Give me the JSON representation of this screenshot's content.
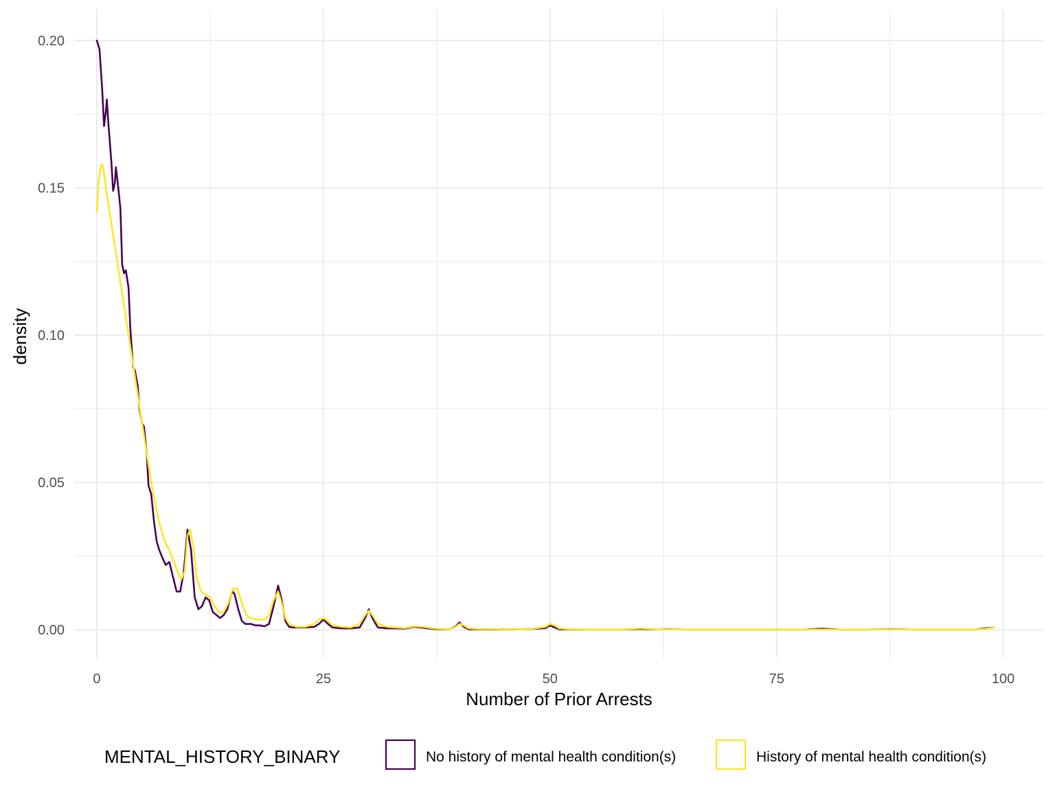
{
  "chart_data": {
    "type": "line",
    "title": "",
    "xlabel": "Number of Prior Arrests",
    "ylabel": "density",
    "xlim": [
      -2.5,
      104.5
    ],
    "ylim": [
      -0.0095,
      0.2105
    ],
    "x_ticks": [
      0,
      25,
      50,
      75,
      100
    ],
    "x_tick_labels": [
      "0",
      "25",
      "50",
      "75",
      "100"
    ],
    "y_ticks": [
      0,
      0.05,
      0.1,
      0.15,
      0.2
    ],
    "y_tick_labels": [
      "0.00",
      "0.05",
      "0.10",
      "0.15",
      "0.20"
    ],
    "grid": true,
    "legend": {
      "title": "MENTAL_HISTORY_BINARY",
      "position": "bottom",
      "entries": [
        {
          "label": "No history of mental health condition(s)",
          "color": "#440154"
        },
        {
          "label": "History of mental health condition(s)",
          "color": "#FDE725"
        }
      ]
    },
    "series": [
      {
        "name": "No history of mental health condition(s)",
        "color": "#440154",
        "x": [
          0,
          0.3,
          0.6,
          0.8,
          1.0,
          1.1,
          1.3,
          1.6,
          1.8,
          2.0,
          2.1,
          2.3,
          2.6,
          2.8,
          3.0,
          3.2,
          3.5,
          3.7,
          4.0,
          4.2,
          4.5,
          4.7,
          5.0,
          5.2,
          5.5,
          5.7,
          6.0,
          6.3,
          6.6,
          6.9,
          7.3,
          7.6,
          8.0,
          8.4,
          8.8,
          9.2,
          9.6,
          10.0,
          10.4,
          10.8,
          11.2,
          11.6,
          12.0,
          12.4,
          12.8,
          13.2,
          13.6,
          14.0,
          14.4,
          14.8,
          15.0,
          15.2,
          15.6,
          16.0,
          16.4,
          17.0,
          17.5,
          18.0,
          18.5,
          19.0,
          19.5,
          20.0,
          20.4,
          20.8,
          21.2,
          21.6,
          22.0,
          23.0,
          24.0,
          24.5,
          25.0,
          25.5,
          26.0,
          27.0,
          28.0,
          29.0,
          29.6,
          30.0,
          30.4,
          31.0,
          32.0,
          33.0,
          34.0,
          35.0,
          36.0,
          37.0,
          38.0,
          39.0,
          39.6,
          40.0,
          40.5,
          41.0,
          42.0,
          44.0,
          46.0,
          48.0,
          49.5,
          50.0,
          50.5,
          51.0,
          52.0,
          55.0,
          58.0,
          60.0,
          62.0,
          63.0,
          65.0,
          68.0,
          70.0,
          72.0,
          75.0,
          78.0,
          80.0,
          82.0,
          85.0,
          88.0,
          90.0,
          92.0,
          95.0,
          97.0,
          98.0,
          99.0
        ],
        "y": [
          0.2,
          0.197,
          0.183,
          0.171,
          0.176,
          0.18,
          0.171,
          0.159,
          0.149,
          0.152,
          0.157,
          0.152,
          0.143,
          0.124,
          0.121,
          0.122,
          0.116,
          0.102,
          0.089,
          0.088,
          0.083,
          0.075,
          0.07,
          0.069,
          0.06,
          0.049,
          0.046,
          0.037,
          0.03,
          0.027,
          0.024,
          0.022,
          0.023,
          0.018,
          0.013,
          0.013,
          0.02,
          0.034,
          0.027,
          0.011,
          0.007,
          0.008,
          0.011,
          0.01,
          0.006,
          0.005,
          0.004,
          0.005,
          0.007,
          0.012,
          0.013,
          0.012,
          0.007,
          0.003,
          0.002,
          0.002,
          0.0015,
          0.0015,
          0.0012,
          0.002,
          0.008,
          0.015,
          0.01,
          0.003,
          0.001,
          0.0008,
          0.0008,
          0.0008,
          0.001,
          0.002,
          0.0035,
          0.002,
          0.0008,
          0.0005,
          0.0005,
          0.0008,
          0.004,
          0.007,
          0.004,
          0.0008,
          0.0005,
          0.0005,
          0.0004,
          0.001,
          0.0007,
          0.0003,
          0.0002,
          0.0002,
          0.0012,
          0.0025,
          0.001,
          0.0002,
          0.0002,
          0.0001,
          0.0002,
          0.0003,
          0.0006,
          0.0015,
          0.0008,
          0.0002,
          0.0001,
          0.0001,
          0.0001,
          0.0003,
          0.0001,
          0.0002,
          0.0001,
          0.0001,
          0.0001,
          0.0001,
          0.0001,
          0.0001,
          0.0004,
          0.0001,
          0.0001,
          0.0002,
          0.0001,
          0.0001,
          0.0001,
          0.0001,
          0.0005,
          0.0008
        ]
      },
      {
        "name": "History of mental health condition(s)",
        "color": "#FDE725",
        "x": [
          0,
          0.2,
          0.4,
          0.6,
          0.8,
          1.0,
          1.5,
          2.0,
          2.5,
          3.0,
          3.5,
          4.0,
          4.5,
          5.0,
          5.5,
          6.0,
          6.5,
          7.0,
          7.5,
          8.0,
          8.5,
          9.0,
          9.3,
          9.7,
          10.0,
          10.3,
          10.7,
          11.0,
          11.5,
          12.0,
          12.5,
          13.0,
          13.5,
          14.0,
          14.5,
          15.0,
          15.5,
          16.0,
          16.5,
          17.0,
          17.5,
          18.0,
          18.5,
          19.0,
          19.5,
          20.0,
          20.4,
          20.8,
          21.2,
          22.0,
          23.0,
          24.0,
          24.5,
          25.0,
          25.5,
          26.0,
          27.0,
          28.0,
          29.0,
          29.6,
          30.0,
          30.4,
          31.0,
          32.0,
          33.0,
          34.0,
          35.0,
          36.0,
          37.0,
          38.0,
          39.0,
          39.6,
          40.0,
          40.5,
          41.0,
          42.0,
          44.0,
          46.0,
          48.0,
          49.5,
          50.0,
          50.5,
          51.0,
          52.0,
          55.0,
          58.0,
          60.0,
          62.0,
          65.0,
          70.0,
          75.0,
          80.0,
          85.0,
          90.0,
          95.0,
          97.0,
          98.0,
          99.0
        ],
        "y": [
          0.142,
          0.152,
          0.157,
          0.158,
          0.155,
          0.15,
          0.14,
          0.13,
          0.12,
          0.11,
          0.1,
          0.09,
          0.08,
          0.07,
          0.06,
          0.05,
          0.042,
          0.035,
          0.03,
          0.027,
          0.023,
          0.019,
          0.017,
          0.02,
          0.032,
          0.034,
          0.027,
          0.018,
          0.013,
          0.012,
          0.011,
          0.008,
          0.006,
          0.006,
          0.009,
          0.014,
          0.014,
          0.009,
          0.005,
          0.004,
          0.0035,
          0.0035,
          0.0035,
          0.005,
          0.01,
          0.013,
          0.009,
          0.004,
          0.002,
          0.001,
          0.001,
          0.002,
          0.0035,
          0.004,
          0.003,
          0.0015,
          0.001,
          0.0008,
          0.002,
          0.005,
          0.0065,
          0.005,
          0.002,
          0.001,
          0.0008,
          0.0006,
          0.0012,
          0.001,
          0.0005,
          0.0003,
          0.0002,
          0.001,
          0.002,
          0.0015,
          0.0005,
          0.0003,
          0.0002,
          0.0002,
          0.0003,
          0.001,
          0.002,
          0.0015,
          0.0005,
          0.0002,
          0.0001,
          0.0001,
          0.0005,
          0.0001,
          0.0001,
          0.0001,
          0.0001,
          0.0001,
          0.0001,
          0.0001,
          0.0001,
          0.0001,
          0.0003,
          0.0008
        ]
      }
    ]
  }
}
